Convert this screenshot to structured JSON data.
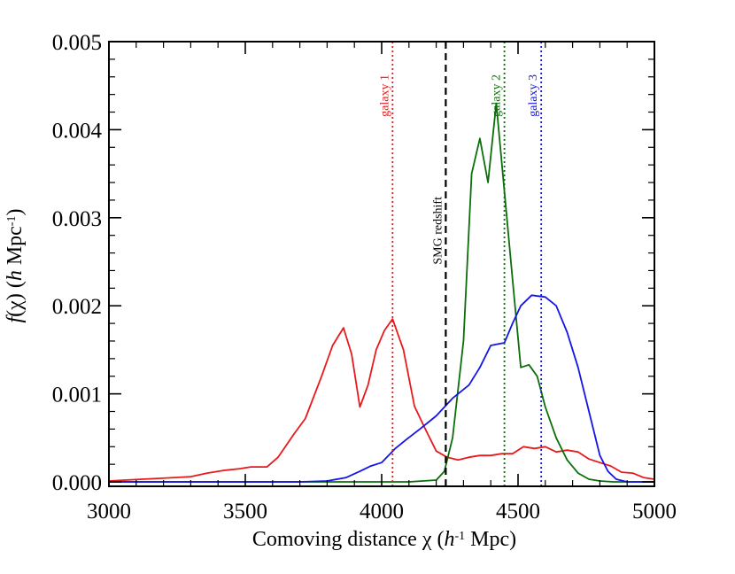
{
  "chart_data": {
    "type": "line",
    "xlabel": "Comoving distance χ (h⁻¹ Mpc)",
    "ylabel": "f(χ) (h Mpc⁻¹)",
    "xlim": [
      3000,
      5000
    ],
    "ylim": [
      -5e-05,
      0.005
    ],
    "xticks": [
      3000,
      3500,
      4000,
      4500,
      5000
    ],
    "xtick_labels": [
      "3000",
      "3500",
      "4000",
      "4500",
      "5000"
    ],
    "yticks": [
      0.0,
      0.001,
      0.002,
      0.003,
      0.004,
      0.005
    ],
    "ytick_labels": [
      "0.000",
      "0.001",
      "0.002",
      "0.003",
      "0.004",
      "0.005"
    ],
    "grid": false,
    "series": [
      {
        "color": "#e8191b",
        "x": [
          3000,
          3060,
          3120,
          3180,
          3240,
          3300,
          3360,
          3420,
          3480,
          3520,
          3580,
          3620,
          3680,
          3720,
          3780,
          3820,
          3860,
          3890,
          3920,
          3950,
          3980,
          4010,
          4040,
          4080,
          4120,
          4160,
          4200,
          4240,
          4280,
          4320,
          4360,
          4400,
          4440,
          4480,
          4520,
          4560,
          4600,
          4640,
          4680,
          4720,
          4760,
          4800,
          4840,
          4880,
          4920,
          4960,
          5000
        ],
        "y": [
          1e-05,
          2e-05,
          3e-05,
          4e-05,
          5e-05,
          6e-05,
          0.0001,
          0.00013,
          0.00015,
          0.00017,
          0.00017,
          0.00028,
          0.00055,
          0.00072,
          0.0012,
          0.00155,
          0.00175,
          0.00145,
          0.00085,
          0.0011,
          0.0015,
          0.00172,
          0.00185,
          0.0015,
          0.00086,
          0.0006,
          0.00035,
          0.00028,
          0.00025,
          0.00028,
          0.0003,
          0.0003,
          0.00032,
          0.00032,
          0.0004,
          0.00038,
          0.0004,
          0.00034,
          0.00036,
          0.00034,
          0.00026,
          0.00022,
          0.00018,
          0.00011,
          0.0001,
          5e-05,
          3e-05
        ]
      },
      {
        "color": "#0a6e0a",
        "x": [
          3000,
          4100,
          4150,
          4200,
          4230,
          4260,
          4300,
          4330,
          4360,
          4390,
          4420,
          4450,
          4480,
          4510,
          4540,
          4570,
          4600,
          4640,
          4680,
          4720,
          4760,
          4800,
          4850,
          5000
        ],
        "y": [
          0.0,
          0.0,
          1e-05,
          2e-05,
          0.00012,
          0.0005,
          0.0016,
          0.0035,
          0.0039,
          0.0034,
          0.0043,
          0.0033,
          0.0023,
          0.0013,
          0.00133,
          0.0012,
          0.00085,
          0.0005,
          0.00025,
          0.0001,
          3e-05,
          1e-05,
          0.0,
          0.0
        ]
      },
      {
        "color": "#1414e6",
        "x": [
          3000,
          3700,
          3800,
          3870,
          3920,
          3960,
          4000,
          4050,
          4090,
          4140,
          4200,
          4260,
          4320,
          4360,
          4400,
          4450,
          4480,
          4510,
          4550,
          4600,
          4640,
          4680,
          4720,
          4760,
          4800,
          4830,
          4860,
          4900,
          5000
        ],
        "y": [
          0.0,
          0.0,
          1e-05,
          5e-05,
          0.00012,
          0.00018,
          0.00022,
          0.00038,
          0.00048,
          0.0006,
          0.00075,
          0.00095,
          0.0011,
          0.0013,
          0.00155,
          0.00158,
          0.0018,
          0.002,
          0.00212,
          0.0021,
          0.002,
          0.0017,
          0.0013,
          0.0008,
          0.0003,
          0.00012,
          3e-05,
          0.0,
          0.0
        ]
      }
    ],
    "vlines": [
      {
        "x": 4040,
        "color": "#e8191b",
        "style": "dotted",
        "label": "galaxy 1"
      },
      {
        "x": 4235,
        "color": "#000000",
        "style": "dashed",
        "label": "SMG redshift"
      },
      {
        "x": 4450,
        "color": "#0a6e0a",
        "style": "dotted",
        "label": "galaxy 2"
      },
      {
        "x": 4585,
        "color": "#1414e6",
        "style": "dotted",
        "label": "galaxy 3"
      }
    ]
  }
}
